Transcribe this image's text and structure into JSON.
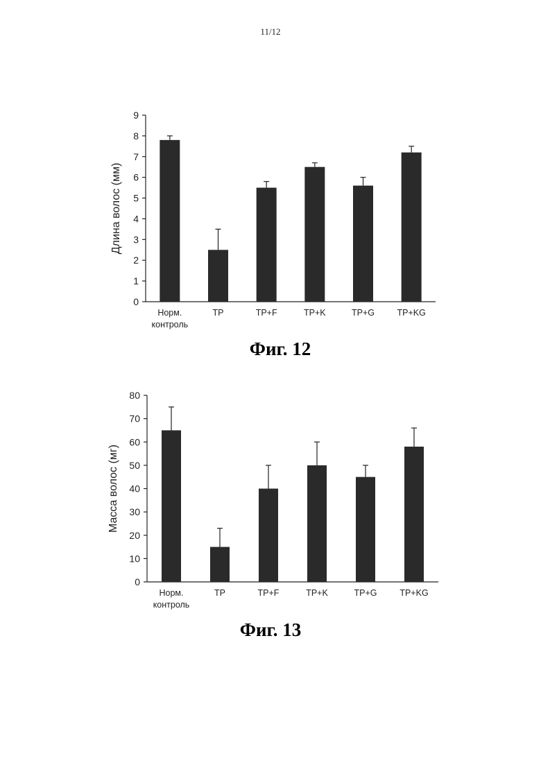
{
  "page": {
    "number": "11/12"
  },
  "figures": [
    {
      "caption": "Фиг. 12"
    },
    {
      "caption": "Фиг. 13"
    }
  ],
  "chart_data": [
    {
      "type": "bar",
      "title": "",
      "xlabel": "",
      "ylabel": "Длина волос (мм)",
      "ylim": [
        0,
        9
      ],
      "yticks": [
        0,
        1,
        2,
        3,
        4,
        5,
        6,
        7,
        8,
        9
      ],
      "categories": [
        [
          "Норм.",
          "контроль"
        ],
        [
          "TP"
        ],
        [
          "TP+F"
        ],
        [
          "TP+K"
        ],
        [
          "TP+G"
        ],
        [
          "TP+KG"
        ]
      ],
      "values": [
        7.8,
        2.5,
        5.5,
        6.5,
        5.6,
        7.2
      ],
      "errors": [
        0.2,
        1.0,
        0.3,
        0.2,
        0.4,
        0.3
      ],
      "bar_color": "#2a2a2a",
      "grid": false
    },
    {
      "type": "bar",
      "title": "",
      "xlabel": "",
      "ylabel": "Масса волос (мг)",
      "ylim": [
        0,
        80
      ],
      "yticks": [
        0,
        10,
        20,
        30,
        40,
        50,
        60,
        70,
        80
      ],
      "categories": [
        [
          "Норм.",
          "контроль"
        ],
        [
          "TP"
        ],
        [
          "TP+F"
        ],
        [
          "TP+K"
        ],
        [
          "TP+G"
        ],
        [
          "TP+KG"
        ]
      ],
      "values": [
        65,
        15,
        40,
        50,
        45,
        58
      ],
      "errors": [
        10,
        8,
        10,
        10,
        5,
        8
      ],
      "bar_color": "#2a2a2a",
      "grid": false
    }
  ]
}
